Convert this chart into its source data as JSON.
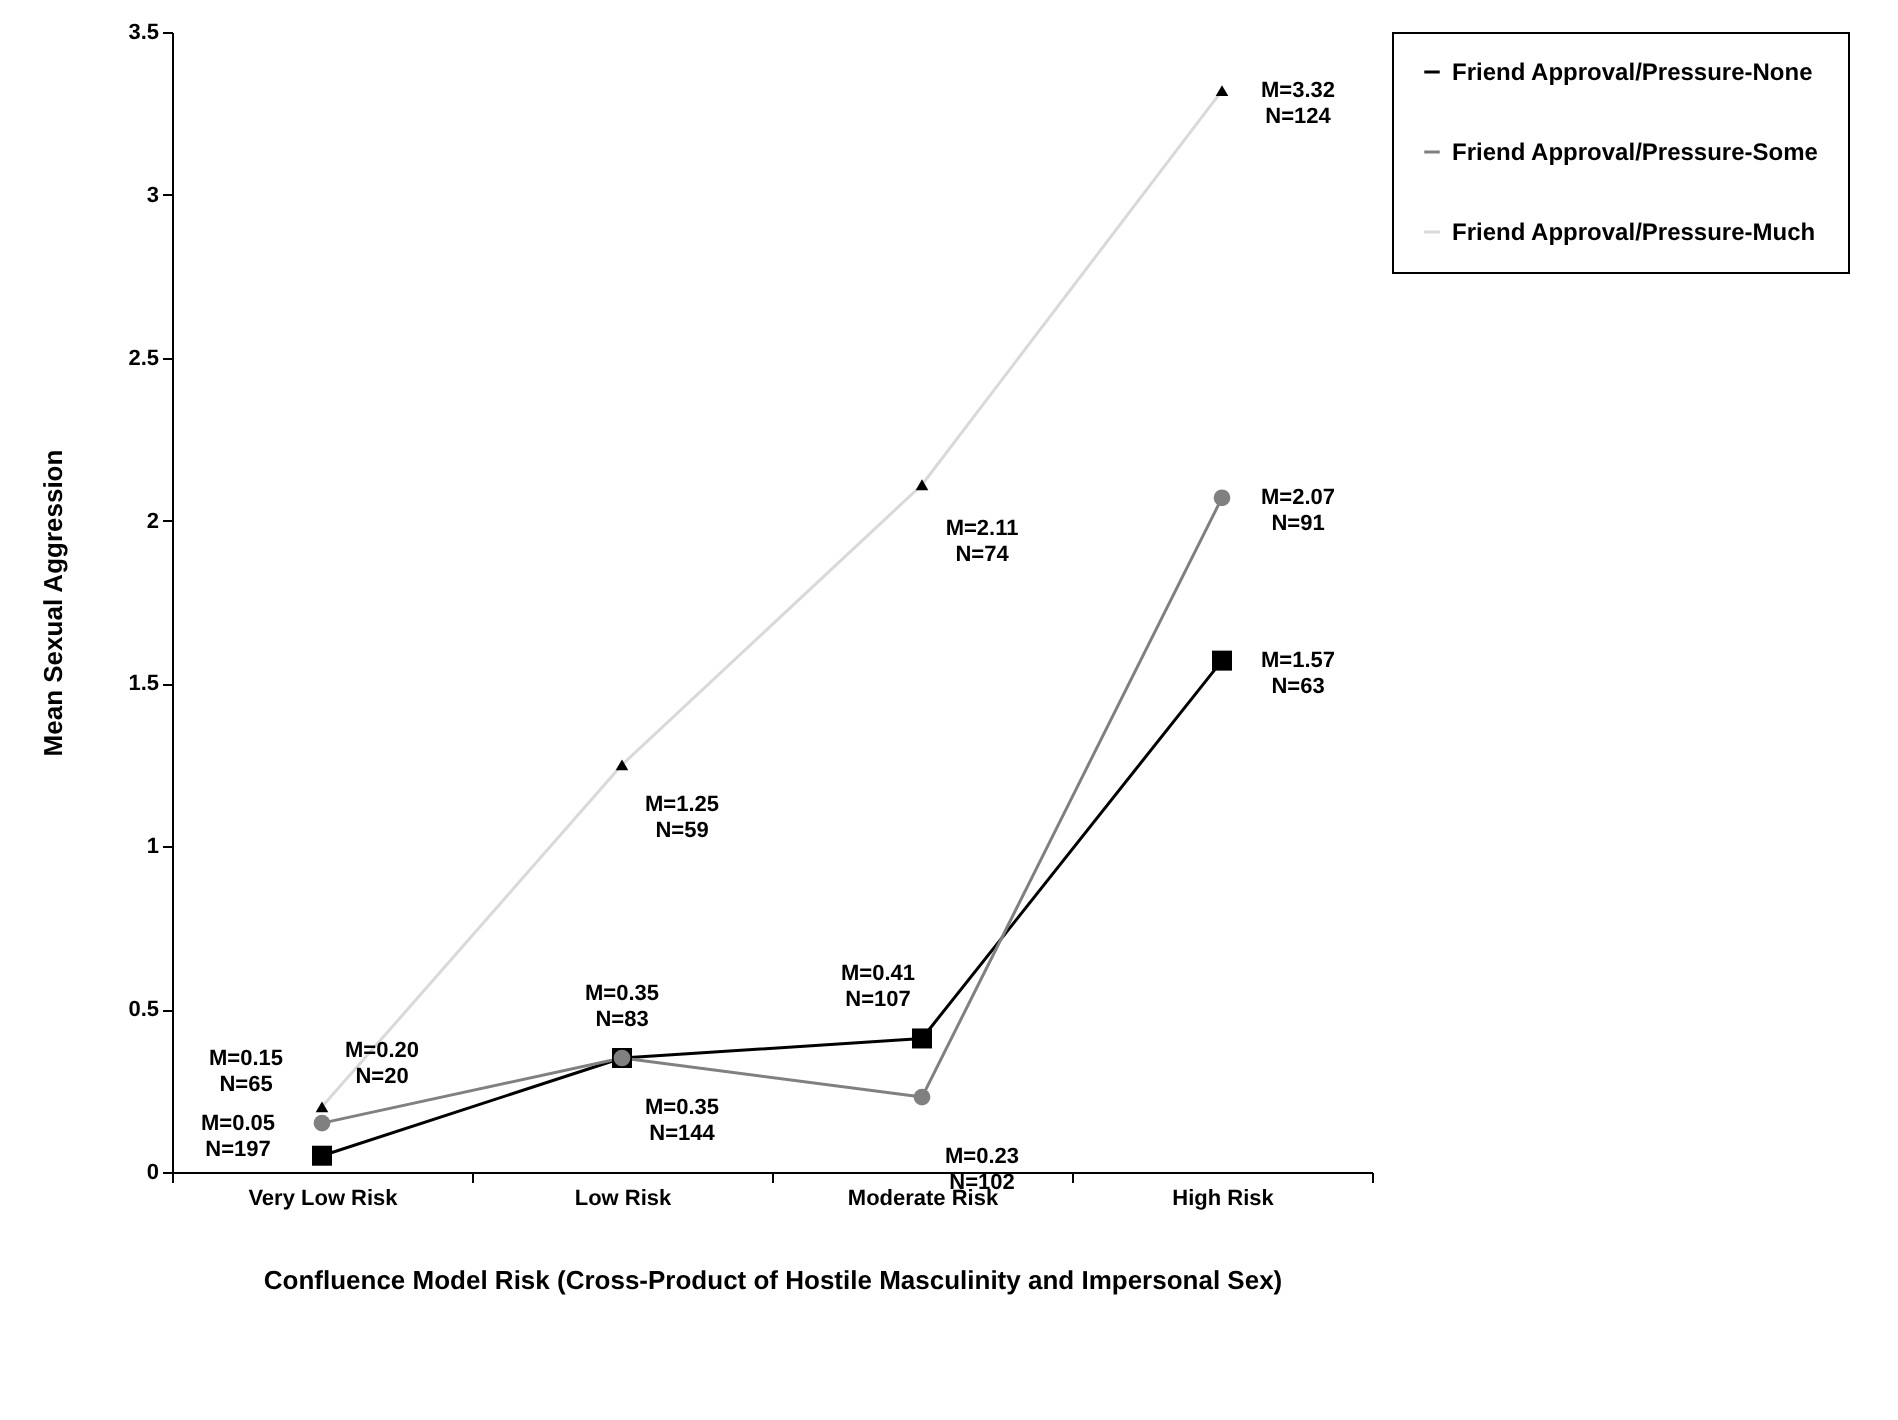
{
  "chart_data": {
    "type": "line",
    "xlabel": "Confluence Model Risk (Cross-Product of Hostile Masculinity and Impersonal Sex)",
    "ylabel": "Mean Sexual Aggression",
    "categories": [
      "Very Low Risk",
      "Low Risk",
      "Moderate Risk",
      "High Risk"
    ],
    "series": [
      {
        "name": "Friend Approval/Pressure-None",
        "color": "#000000",
        "marker": "square",
        "values": [
          0.05,
          0.35,
          0.41,
          1.57
        ]
      },
      {
        "name": "Friend Approval/Pressure-Some",
        "color": "#808080",
        "marker": "circle",
        "values": [
          0.15,
          0.35,
          0.23,
          2.07
        ]
      },
      {
        "name": "Friend Approval/Pressure-Much",
        "color": "#d9d9d9",
        "marker": "triangle",
        "values": [
          0.2,
          1.25,
          2.11,
          3.32
        ]
      }
    ],
    "ylim": [
      0,
      3.5
    ],
    "yticks": [
      0,
      0.5,
      1,
      1.5,
      2,
      2.5,
      3,
      3.5
    ],
    "grid": false,
    "legend": "right",
    "annotations": [
      {
        "text": "M=0.20\nN=20",
        "x": "Very Low Risk",
        "y": 0.2
      },
      {
        "text": "M=0.15\nN=65",
        "x": "Very Low Risk",
        "y": 0.15
      },
      {
        "text": "M=0.05\nN=197",
        "x": "Very Low Risk",
        "y": 0.05
      },
      {
        "text": "M=1.25\nN=59",
        "x": "Low Risk",
        "y": 1.25
      },
      {
        "text": "M=0.35\nN=83",
        "x": "Low Risk",
        "y": 0.35
      },
      {
        "text": "M=0.35\nN=144",
        "x": "Low Risk",
        "y": 0.35
      },
      {
        "text": "M=2.11\nN=74",
        "x": "Moderate Risk",
        "y": 2.11
      },
      {
        "text": "M=0.41\nN=107",
        "x": "Moderate Risk",
        "y": 0.41
      },
      {
        "text": "M=0.23\nN=102",
        "x": "Moderate Risk",
        "y": 0.23
      },
      {
        "text": "M=3.32\nN=124",
        "x": "High Risk",
        "y": 3.32
      },
      {
        "text": "M=2.07\nN=91",
        "x": "High Risk",
        "y": 2.07
      },
      {
        "text": "M=1.57\nN=63",
        "x": "High Risk",
        "y": 1.57
      }
    ]
  }
}
